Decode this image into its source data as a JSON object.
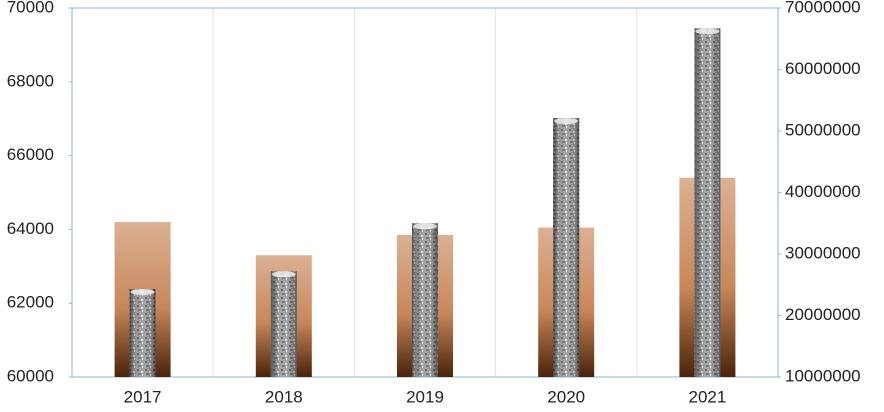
{
  "chart_data": {
    "type": "bar",
    "categories": [
      "2017",
      "2018",
      "2019",
      "2020",
      "2021"
    ],
    "series": [
      {
        "color": "#c8875a",
        "values": [
          64200,
          63300,
          63850,
          64050,
          65400
        ]
      },
      {
        "color": "#8c8c8c",
        "axis": "y2",
        "values": [
          24300000,
          27200000,
          35000000,
          52100000,
          66700000
        ]
      }
    ],
    "ylim": [
      60000,
      70000
    ],
    "yticks": [
      60000,
      62000,
      64000,
      66000,
      68000,
      70000
    ],
    "y2lim": [
      10000000,
      70000000
    ],
    "y2ticks": [
      10000000,
      20000000,
      30000000,
      40000000,
      50000000,
      60000000,
      70000000
    ],
    "grid": true
  }
}
